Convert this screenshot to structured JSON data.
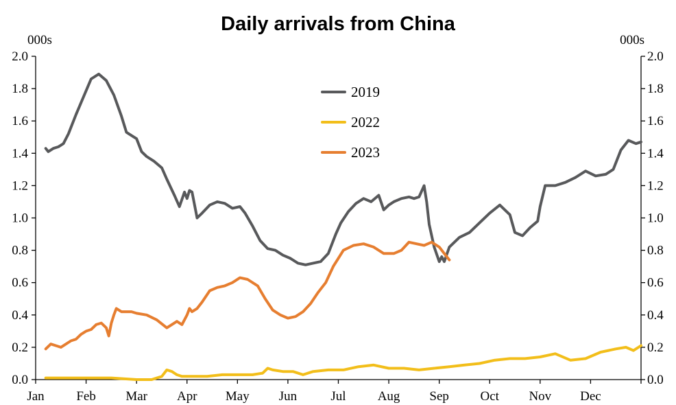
{
  "chart_data": {
    "type": "line",
    "title": "Daily arrivals from China",
    "y_unit_left": "000s",
    "y_unit_right": "000s",
    "ylim": [
      0,
      2.0
    ],
    "yticks": [
      "0.0",
      "0.2",
      "0.4",
      "0.6",
      "0.8",
      "1.0",
      "1.2",
      "1.4",
      "1.6",
      "1.8",
      "2.0"
    ],
    "xlim": [
      0,
      12
    ],
    "x_unit": "month",
    "month_labels": [
      "Jan",
      "Feb",
      "Mar",
      "Apr",
      "May",
      "Jun",
      "Jul",
      "Aug",
      "Sep",
      "Oct",
      "Nov",
      "Dec"
    ],
    "grid": false,
    "legend_position": "top-center",
    "series": [
      {
        "name": "2019",
        "color": "#58595b",
        "x": [
          0.2,
          0.25,
          0.35,
          0.45,
          0.55,
          0.65,
          0.8,
          0.95,
          1.1,
          1.25,
          1.4,
          1.55,
          1.7,
          1.8,
          1.9,
          2.0,
          2.1,
          2.2,
          2.35,
          2.5,
          2.6,
          2.75,
          2.85,
          2.95,
          3.0,
          3.05,
          3.1,
          3.2,
          3.3,
          3.45,
          3.6,
          3.75,
          3.9,
          4.05,
          4.15,
          4.3,
          4.45,
          4.6,
          4.75,
          4.9,
          5.05,
          5.2,
          5.35,
          5.5,
          5.65,
          5.8,
          5.95,
          6.05,
          6.2,
          6.35,
          6.5,
          6.65,
          6.8,
          6.9,
          7.0,
          7.1,
          7.25,
          7.4,
          7.5,
          7.6,
          7.7,
          7.75,
          7.8,
          7.9,
          8.0,
          8.05,
          8.1,
          8.2,
          8.4,
          8.6,
          8.8,
          9.0,
          9.2,
          9.4,
          9.5,
          9.65,
          9.8,
          9.95,
          10.0,
          10.1,
          10.3,
          10.5,
          10.7,
          10.9,
          11.1,
          11.3,
          11.45,
          11.6,
          11.75,
          11.9,
          12.0
        ],
        "y": [
          1.43,
          1.41,
          1.43,
          1.44,
          1.46,
          1.52,
          1.64,
          1.75,
          1.86,
          1.89,
          1.85,
          1.76,
          1.63,
          1.53,
          1.51,
          1.49,
          1.41,
          1.38,
          1.35,
          1.31,
          1.24,
          1.14,
          1.07,
          1.16,
          1.12,
          1.17,
          1.16,
          1.0,
          1.03,
          1.08,
          1.1,
          1.09,
          1.06,
          1.07,
          1.03,
          0.95,
          0.86,
          0.81,
          0.8,
          0.77,
          0.75,
          0.72,
          0.71,
          0.72,
          0.73,
          0.78,
          0.9,
          0.97,
          1.04,
          1.09,
          1.12,
          1.1,
          1.14,
          1.05,
          1.08,
          1.1,
          1.12,
          1.13,
          1.12,
          1.13,
          1.2,
          1.1,
          0.96,
          0.82,
          0.73,
          0.76,
          0.73,
          0.82,
          0.88,
          0.91,
          0.97,
          1.03,
          1.08,
          1.02,
          0.91,
          0.89,
          0.94,
          0.98,
          1.07,
          1.2,
          1.2,
          1.22,
          1.25,
          1.29,
          1.26,
          1.27,
          1.3,
          1.42,
          1.48,
          1.46,
          1.47
        ]
      },
      {
        "name": "2022",
        "color": "#f2be1a",
        "x": [
          0.2,
          0.5,
          1.0,
          1.5,
          2.0,
          2.3,
          2.5,
          2.6,
          2.7,
          2.8,
          2.9,
          3.1,
          3.4,
          3.7,
          4.0,
          4.3,
          4.5,
          4.6,
          4.7,
          4.9,
          5.1,
          5.3,
          5.5,
          5.8,
          6.1,
          6.4,
          6.7,
          7.0,
          7.3,
          7.6,
          7.9,
          8.2,
          8.5,
          8.8,
          9.1,
          9.4,
          9.7,
          10.0,
          10.3,
          10.6,
          10.9,
          11.2,
          11.5,
          11.7,
          11.85,
          12.0
        ],
        "y": [
          0.01,
          0.01,
          0.01,
          0.01,
          0.0,
          0.0,
          0.02,
          0.06,
          0.05,
          0.03,
          0.02,
          0.02,
          0.02,
          0.03,
          0.03,
          0.03,
          0.04,
          0.07,
          0.06,
          0.05,
          0.05,
          0.03,
          0.05,
          0.06,
          0.06,
          0.08,
          0.09,
          0.07,
          0.07,
          0.06,
          0.07,
          0.08,
          0.09,
          0.1,
          0.12,
          0.13,
          0.13,
          0.14,
          0.16,
          0.12,
          0.13,
          0.17,
          0.19,
          0.2,
          0.18,
          0.21
        ]
      },
      {
        "name": "2023",
        "color": "#e67e30",
        "x": [
          0.2,
          0.3,
          0.4,
          0.5,
          0.6,
          0.7,
          0.8,
          0.9,
          1.0,
          1.1,
          1.2,
          1.3,
          1.4,
          1.45,
          1.5,
          1.55,
          1.6,
          1.7,
          1.8,
          1.9,
          2.0,
          2.2,
          2.4,
          2.6,
          2.8,
          2.9,
          3.0,
          3.05,
          3.1,
          3.2,
          3.3,
          3.45,
          3.6,
          3.75,
          3.9,
          4.05,
          4.2,
          4.4,
          4.55,
          4.7,
          4.85,
          5.0,
          5.15,
          5.3,
          5.45,
          5.6,
          5.75,
          5.9,
          6.1,
          6.3,
          6.5,
          6.7,
          6.9,
          7.1,
          7.25,
          7.4,
          7.55,
          7.7,
          7.85,
          8.0,
          8.1,
          8.2
        ],
        "y": [
          0.19,
          0.22,
          0.21,
          0.2,
          0.22,
          0.24,
          0.25,
          0.28,
          0.3,
          0.31,
          0.34,
          0.35,
          0.32,
          0.27,
          0.35,
          0.4,
          0.44,
          0.42,
          0.42,
          0.42,
          0.41,
          0.4,
          0.37,
          0.32,
          0.36,
          0.34,
          0.4,
          0.44,
          0.42,
          0.44,
          0.48,
          0.55,
          0.57,
          0.58,
          0.6,
          0.63,
          0.62,
          0.58,
          0.5,
          0.43,
          0.4,
          0.38,
          0.39,
          0.42,
          0.47,
          0.54,
          0.6,
          0.7,
          0.8,
          0.83,
          0.84,
          0.82,
          0.78,
          0.78,
          0.8,
          0.85,
          0.84,
          0.83,
          0.85,
          0.82,
          0.78,
          0.74
        ]
      }
    ]
  }
}
